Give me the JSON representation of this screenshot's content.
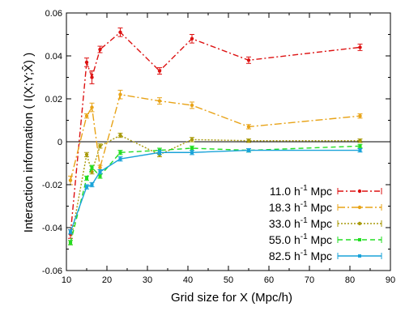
{
  "chart_data": {
    "type": "line",
    "xlabel": "Grid size for X (Mpc/h)",
    "ylabel": "Interaction information ( I(X;Y;X̂) )",
    "xlim": [
      10,
      90
    ],
    "ylim": [
      -0.06,
      0.06
    ],
    "x_ticks": [
      "10",
      "20",
      "30",
      "40",
      "50",
      "60",
      "70",
      "80",
      "90"
    ],
    "y_ticks": [
      "-0.06",
      "-0.04",
      "-0.02",
      "0",
      "0.02",
      "0.04",
      "0.06"
    ],
    "zero_line": true,
    "legend_position": "bottom-right",
    "series": [
      {
        "name": "11.0 h⁻¹ Mpc",
        "label_main": "11.0 h",
        "label_sup": "-1",
        "label_tail": " Mpc",
        "color": "#dd1111",
        "dash": "7,3,2,3",
        "marker": "circle",
        "x": [
          11,
          15,
          16.3,
          18.3,
          23.3,
          33,
          41,
          55,
          82.5
        ],
        "y": [
          -0.043,
          0.037,
          0.03,
          0.043,
          0.051,
          0.033,
          0.048,
          0.038,
          0.044
        ],
        "err": [
          0.002,
          0.002,
          0.003,
          0.0015,
          0.002,
          0.0015,
          0.002,
          0.0015,
          0.0015
        ]
      },
      {
        "name": "18.3 h⁻¹ Mpc",
        "label_main": "18.3 h",
        "label_sup": "-1",
        "label_tail": " Mpc",
        "color": "#e8a317",
        "dash": "9,3,2,3",
        "marker": "circle",
        "x": [
          11,
          15,
          16.3,
          18.3,
          23.3,
          33,
          41,
          55,
          82.5
        ],
        "y": [
          -0.018,
          0.012,
          0.016,
          -0.012,
          0.022,
          0.019,
          0.017,
          0.007,
          0.012
        ],
        "err": [
          0.002,
          0.001,
          0.002,
          0.001,
          0.002,
          0.0015,
          0.0015,
          0.001,
          0.001
        ]
      },
      {
        "name": "33.0 h⁻¹ Mpc",
        "label_main": "33.0 h",
        "label_sup": "-1",
        "label_tail": " Mpc",
        "color": "#a89a0a",
        "dash": "2,2",
        "marker": "circle",
        "x": [
          11,
          15,
          16.3,
          18.3,
          23.3,
          33,
          41,
          55,
          82.5
        ],
        "y": [
          -0.047,
          -0.006,
          -0.014,
          -0.002,
          0.003,
          -0.006,
          0.001,
          0.0005,
          0.0005
        ],
        "err": [
          0.001,
          0.001,
          0.001,
          0.001,
          0.001,
          0.001,
          0.001,
          0.0008,
          0.0008
        ]
      },
      {
        "name": "55.0 h⁻¹ Mpc",
        "label_main": "55.0 h",
        "label_sup": "-1",
        "label_tail": " Mpc",
        "color": "#22dd22",
        "dash": "6,4",
        "marker": "square",
        "x": [
          11,
          15,
          16.3,
          18.3,
          23.3,
          33,
          41,
          55,
          82.5
        ],
        "y": [
          -0.047,
          -0.017,
          -0.012,
          -0.016,
          -0.005,
          -0.004,
          -0.003,
          -0.004,
          -0.002
        ],
        "err": [
          0.001,
          0.001,
          0.001,
          0.001,
          0.001,
          0.001,
          0.001,
          0.0008,
          0.0008
        ]
      },
      {
        "name": "82.5 h⁻¹ Mpc",
        "label_main": "82.5 h",
        "label_sup": "-1",
        "label_tail": " Mpc",
        "color": "#1aa3d9",
        "dash": "",
        "marker": "square",
        "x": [
          11,
          15,
          16.3,
          18.3,
          23.3,
          33,
          41,
          55,
          82.5
        ],
        "y": [
          -0.042,
          -0.021,
          -0.02,
          -0.014,
          -0.008,
          -0.005,
          -0.005,
          -0.004,
          -0.004
        ],
        "err": [
          0.001,
          0.001,
          0.001,
          0.001,
          0.001,
          0.001,
          0.001,
          0.0008,
          0.0008
        ]
      }
    ]
  }
}
